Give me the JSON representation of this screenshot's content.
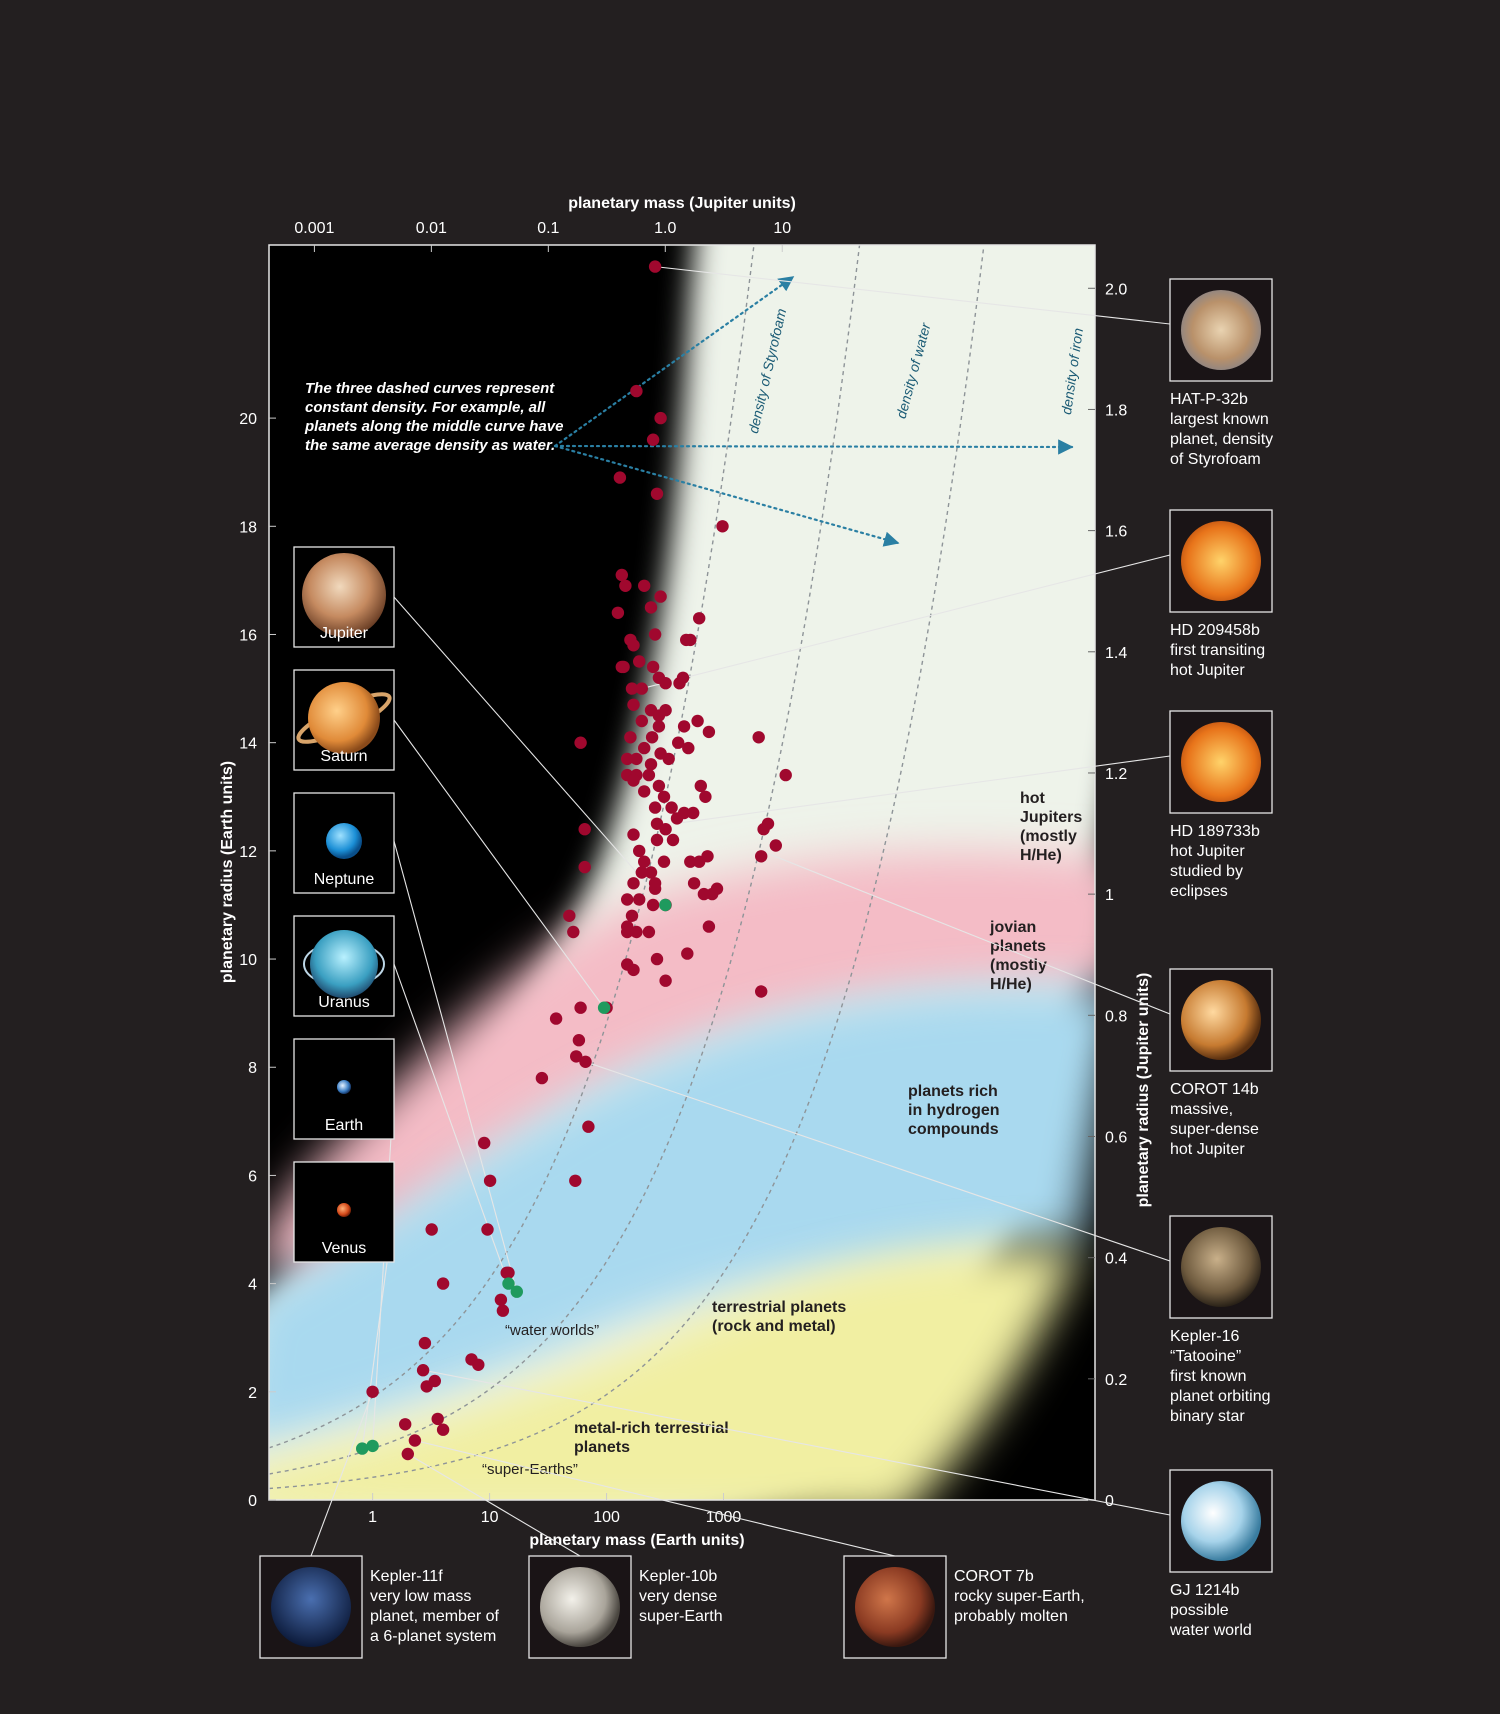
{
  "chart_data": {
    "type": "scatter",
    "xlabel_bottom": "planetary mass (Earth units)",
    "xlabel_top": "planetary mass (Jupiter units)",
    "ylabel_left": "planetary radius (Earth units)",
    "ylabel_right": "planetary radius (Jupiter units)",
    "x_scale": "log",
    "xlim": [
      0.13,
      1500000
    ],
    "ylim": [
      0,
      23.2
    ],
    "bottom_ticks": [
      {
        "v": 1,
        "label": "1"
      },
      {
        "v": 10,
        "label": "10"
      },
      {
        "v": 100,
        "label": "100"
      },
      {
        "v": 1000,
        "label": "1000"
      }
    ],
    "top_ticks": [
      {
        "v": 0.001,
        "label": "0.001"
      },
      {
        "v": 0.01,
        "label": "0.01"
      },
      {
        "v": 0.1,
        "label": "0.1"
      },
      {
        "v": 1.0,
        "label": "1.0"
      },
      {
        "v": 10,
        "label": "10"
      }
    ],
    "left_ticks": [
      {
        "v": 0,
        "label": "0"
      },
      {
        "v": 2,
        "label": "2"
      },
      {
        "v": 4,
        "label": "4"
      },
      {
        "v": 6,
        "label": "6"
      },
      {
        "v": 8,
        "label": "8"
      },
      {
        "v": 10,
        "label": "10"
      },
      {
        "v": 12,
        "label": "12"
      },
      {
        "v": 14,
        "label": "14"
      },
      {
        "v": 16,
        "label": "16"
      },
      {
        "v": 18,
        "label": "18"
      },
      {
        "v": 20,
        "label": "20"
      }
    ],
    "right_ticks": [
      {
        "v": 0,
        "label": "0"
      },
      {
        "v": 0.2,
        "label": "0.2"
      },
      {
        "v": 0.4,
        "label": "0.4"
      },
      {
        "v": 0.6,
        "label": "0.6"
      },
      {
        "v": 0.8,
        "label": "0.8"
      },
      {
        "v": 1,
        "label": "1"
      },
      {
        "v": 1.2,
        "label": "1.2"
      },
      {
        "v": 1.4,
        "label": "1.4"
      },
      {
        "v": 1.6,
        "label": "1.6"
      },
      {
        "v": 1.8,
        "label": "1.8"
      },
      {
        "v": 2.0,
        "label": "2.0"
      }
    ],
    "density_curves": [
      {
        "label": "density of Styrofoam"
      },
      {
        "label": "density of water"
      },
      {
        "label": "density of iron"
      }
    ],
    "annotation": {
      "lines": [
        "The three dashed curves represent",
        "constant density. For example, all",
        "planets along the middle curve have",
        "the same average density as water."
      ]
    },
    "regions": [
      {
        "name": "hot-jupiters",
        "lines": [
          "hot",
          "Jupiters",
          "(mostly",
          "H/He)"
        ]
      },
      {
        "name": "jovian-planets",
        "lines": [
          "jovian",
          "planets",
          "(mostly",
          "H/He)"
        ]
      },
      {
        "name": "hydrogen-rich",
        "lines": [
          "planets rich",
          "in hydrogen",
          "compounds"
        ]
      },
      {
        "name": "terrestrial",
        "lines": [
          "terrestrial planets",
          "(rock and metal)"
        ]
      },
      {
        "name": "metal-rich",
        "lines": [
          "metal-rich terrestrial",
          "planets"
        ]
      }
    ],
    "small_labels": [
      "“water worlds”",
      "“super-Earths”"
    ],
    "solar_system_planets": [
      {
        "name": "Jupiter",
        "mass": 317.8,
        "radius": 11.0,
        "color": "#4f9d72"
      },
      {
        "name": "Saturn",
        "mass": 95.2,
        "radius": 9.1,
        "color": "#4f9d72"
      },
      {
        "name": "Neptune",
        "mass": 17.1,
        "radius": 3.85,
        "color": "#4f9d72"
      },
      {
        "name": "Uranus",
        "mass": 14.5,
        "radius": 4.0,
        "color": "#4f9d72"
      },
      {
        "name": "Earth",
        "mass": 1.0,
        "radius": 1.0,
        "color": "#4f9d72"
      },
      {
        "name": "Venus",
        "mass": 0.815,
        "radius": 0.95,
        "color": "#4f9d72"
      }
    ],
    "exoplanets": [
      [
        260,
        22.8
      ],
      [
        180,
        20.5
      ],
      [
        290,
        20.0
      ],
      [
        250,
        19.6
      ],
      [
        130,
        18.9
      ],
      [
        270,
        18.6
      ],
      [
        980,
        18.0
      ],
      [
        135,
        17.1
      ],
      [
        145,
        16.9
      ],
      [
        125,
        16.4
      ],
      [
        210,
        16.9
      ],
      [
        290,
        16.7
      ],
      [
        240,
        16.5
      ],
      [
        620,
        16.3
      ],
      [
        260,
        16.0
      ],
      [
        160,
        15.9
      ],
      [
        170,
        15.8
      ],
      [
        480,
        15.9
      ],
      [
        520,
        15.9
      ],
      [
        135,
        15.4
      ],
      [
        140,
        15.4
      ],
      [
        190,
        15.5
      ],
      [
        250,
        15.4
      ],
      [
        280,
        15.2
      ],
      [
        320,
        15.1
      ],
      [
        420,
        15.1
      ],
      [
        450,
        15.2
      ],
      [
        165,
        15.0
      ],
      [
        200,
        15.0
      ],
      [
        170,
        14.7
      ],
      [
        240,
        14.6
      ],
      [
        200,
        14.4
      ],
      [
        280,
        14.5
      ],
      [
        320,
        14.6
      ],
      [
        280,
        14.3
      ],
      [
        460,
        14.3
      ],
      [
        600,
        14.4
      ],
      [
        750,
        14.2
      ],
      [
        160,
        14.1
      ],
      [
        245,
        14.1
      ],
      [
        410,
        14.0
      ],
      [
        60,
        14.0
      ],
      [
        210,
        13.9
      ],
      [
        290,
        13.8
      ],
      [
        340,
        13.7
      ],
      [
        150,
        13.7
      ],
      [
        180,
        13.7
      ],
      [
        240,
        13.6
      ],
      [
        500,
        13.9
      ],
      [
        2000,
        14.1
      ],
      [
        150,
        13.4
      ],
      [
        180,
        13.4
      ],
      [
        210,
        13.1
      ],
      [
        280,
        13.2
      ],
      [
        310,
        13.0
      ],
      [
        170,
        13.3
      ],
      [
        230,
        13.4
      ],
      [
        640,
        13.2
      ],
      [
        700,
        13.0
      ],
      [
        3400,
        13.4
      ],
      [
        260,
        12.8
      ],
      [
        360,
        12.8
      ],
      [
        400,
        12.6
      ],
      [
        460,
        12.7
      ],
      [
        550,
        12.7
      ],
      [
        2400,
        12.5
      ],
      [
        270,
        12.5
      ],
      [
        320,
        12.4
      ],
      [
        2200,
        12.4
      ],
      [
        65,
        12.4
      ],
      [
        170,
        12.3
      ],
      [
        270,
        12.2
      ],
      [
        370,
        12.2
      ],
      [
        190,
        12.0
      ],
      [
        2800,
        12.1
      ],
      [
        2100,
        11.9
      ],
      [
        520,
        11.8
      ],
      [
        620,
        11.8
      ],
      [
        310,
        11.8
      ],
      [
        210,
        11.8
      ],
      [
        730,
        11.9
      ],
      [
        65,
        11.7
      ],
      [
        240,
        11.6
      ],
      [
        200,
        11.6
      ],
      [
        170,
        11.4
      ],
      [
        260,
        11.4
      ],
      [
        560,
        11.4
      ],
      [
        800,
        11.2
      ],
      [
        880,
        11.3
      ],
      [
        260,
        11.3
      ],
      [
        680,
        11.2
      ],
      [
        150,
        11.1
      ],
      [
        190,
        11.1
      ],
      [
        250,
        11.0
      ],
      [
        320,
        11.0
      ],
      [
        48,
        10.8
      ],
      [
        150,
        10.6
      ],
      [
        165,
        10.8
      ],
      [
        230,
        10.5
      ],
      [
        750,
        10.6
      ],
      [
        52,
        10.5
      ],
      [
        150,
        10.5
      ],
      [
        180,
        10.5
      ],
      [
        490,
        10.1
      ],
      [
        270,
        10.0
      ],
      [
        150,
        9.9
      ],
      [
        170,
        9.8
      ],
      [
        320,
        9.6
      ],
      [
        2100,
        9.4
      ],
      [
        60,
        9.1
      ],
      [
        100,
        9.1
      ],
      [
        37,
        8.9
      ],
      [
        58,
        8.5
      ],
      [
        55,
        8.2
      ],
      [
        66,
        8.1
      ],
      [
        28,
        7.8
      ],
      [
        70,
        6.9
      ],
      [
        9.0,
        6.6
      ],
      [
        10.1,
        5.9
      ],
      [
        54,
        5.9
      ],
      [
        9.6,
        5.0
      ],
      [
        3.2,
        5.0
      ],
      [
        14.5,
        4.2
      ],
      [
        4.0,
        4.0
      ],
      [
        14.0,
        4.2
      ],
      [
        12.5,
        3.7
      ],
      [
        13.0,
        3.5
      ],
      [
        2.8,
        2.9
      ],
      [
        7.0,
        2.6
      ],
      [
        8.0,
        2.5
      ],
      [
        2.7,
        2.4
      ],
      [
        2.9,
        2.1
      ],
      [
        3.4,
        2.2
      ],
      [
        1.0,
        2.0
      ],
      [
        3.6,
        1.5
      ],
      [
        4.0,
        1.3
      ],
      [
        1.9,
        1.4
      ],
      [
        2.3,
        1.1
      ],
      [
        2.0,
        0.85
      ]
    ]
  },
  "planet_thumbnails": [
    {
      "label": "Jupiter",
      "icon": "jupiter-icon"
    },
    {
      "label": "Saturn",
      "icon": "saturn-icon"
    },
    {
      "label": "Neptune",
      "icon": "neptune-icon"
    },
    {
      "label": "Uranus",
      "icon": "uranus-icon"
    },
    {
      "label": "Earth",
      "icon": "earth-icon"
    },
    {
      "label": "Venus",
      "icon": "venus-icon"
    }
  ],
  "exoplanet_callouts": [
    {
      "name": "HAT-P-32b",
      "lines": [
        "HAT-P-32b",
        "largest known",
        "planet, density",
        "of Styrofoam"
      ],
      "mass": 260,
      "radius": 22.8
    },
    {
      "name": "HD 209458b",
      "lines": [
        "HD 209458b",
        "first transiting",
        "hot Jupiter"
      ],
      "mass": 200,
      "radius": 15.0
    },
    {
      "name": "HD 189733b",
      "lines": [
        "HD 189733b",
        "hot Jupiter",
        "studied by",
        "eclipses"
      ],
      "mass": 370,
      "radius": 12.5
    },
    {
      "name": "COROT 14b",
      "lines": [
        "COROT  14b",
        "massive,",
        "super-dense",
        "hot Jupiter"
      ],
      "mass": 2400,
      "radius": 11.95
    },
    {
      "name": "Kepler-16",
      "lines": [
        "Kepler-16",
        "“Tatooine”",
        "first known",
        "planet orbiting",
        "binary star"
      ],
      "mass": 66,
      "radius": 8.1
    },
    {
      "name": "GJ 1214b",
      "lines": [
        "GJ 1214b",
        "possible",
        "water world"
      ],
      "mass": 2.7,
      "radius": 2.4
    },
    {
      "name": "Kepler-11f",
      "lines": [
        "Kepler-11f",
        "very low mass",
        "planet, member of",
        "a 6-planet system"
      ],
      "mass": 1.0,
      "radius": 2.0
    },
    {
      "name": "Kepler-10b",
      "lines": [
        "Kepler-10b",
        "very dense",
        "super-Earth"
      ],
      "mass": 2.0,
      "radius": 0.85
    },
    {
      "name": "COROT 7b",
      "lines": [
        "COROT 7b",
        "rocky super-Earth,",
        "probably molten"
      ],
      "mass": 2.3,
      "radius": 1.1
    }
  ],
  "colors": {
    "background": "#231f20",
    "exoplanet_dot": "#a0082e",
    "solar_system_dot": "#1f9a5e",
    "arrow": "#1b5b75",
    "zone_outer": "#eef3ea",
    "zone_jovian": "#f4bcc6",
    "zone_hydrogen": "#a9d9ef",
    "zone_terrestrial": "#f1efa2"
  }
}
